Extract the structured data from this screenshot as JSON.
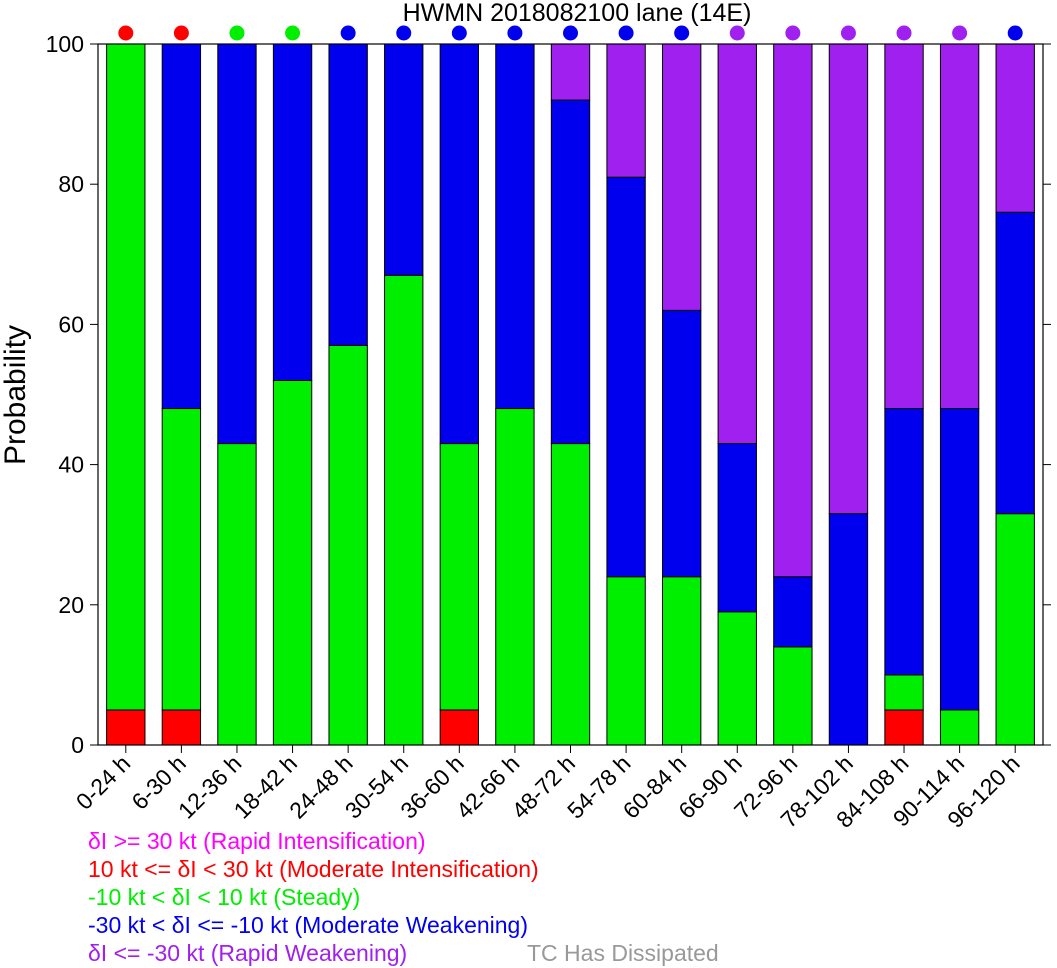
{
  "chart_data": {
    "type": "bar",
    "stacked": true,
    "title": "HWMN 2018082100 lane (14E)",
    "xlabel": "",
    "ylabel": "Probability",
    "ylim": [
      0,
      100
    ],
    "yticks": [
      0,
      20,
      40,
      60,
      80,
      100
    ],
    "categories": [
      "0-24 h",
      "6-30 h",
      "12-36 h",
      "18-42 h",
      "24-48 h",
      "30-54 h",
      "36-60 h",
      "42-66 h",
      "48-72 h",
      "54-78 h",
      "60-84 h",
      "66-90 h",
      "72-96 h",
      "78-102 h",
      "84-108 h",
      "90-114 h",
      "96-120 h"
    ],
    "series": [
      {
        "name": "Moderate Intensification",
        "color": "#ff0000",
        "values": [
          5,
          5,
          0,
          0,
          0,
          0,
          5,
          0,
          0,
          0,
          0,
          0,
          0,
          0,
          5,
          0,
          0
        ]
      },
      {
        "name": "Steady",
        "color": "#00ee00",
        "values": [
          95,
          43,
          43,
          52,
          57,
          67,
          38,
          48,
          43,
          24,
          24,
          19,
          14,
          0,
          5,
          5,
          33
        ]
      },
      {
        "name": "Moderate Weakening",
        "color": "#0000ee",
        "values": [
          0,
          52,
          57,
          48,
          43,
          33,
          57,
          52,
          49,
          57,
          38,
          24,
          10,
          33,
          38,
          43,
          43
        ]
      },
      {
        "name": "Rapid Weakening",
        "color": "#a020f0",
        "values": [
          0,
          0,
          0,
          0,
          0,
          0,
          0,
          0,
          8,
          19,
          38,
          57,
          76,
          67,
          52,
          52,
          24
        ]
      }
    ],
    "top_markers": [
      "#ff0000",
      "#ff0000",
      "#00ee00",
      "#00ee00",
      "#0000ee",
      "#0000ee",
      "#0000ee",
      "#0000ee",
      "#0000ee",
      "#0000ee",
      "#0000ee",
      "#a020f0",
      "#a020f0",
      "#a020f0",
      "#a020f0",
      "#a020f0",
      "#0000ee"
    ]
  },
  "legend": [
    {
      "text": "δI >= 30 kt (Rapid Intensification)",
      "color": "#ff00ff"
    },
    {
      "text": "10 kt <= δI < 30 kt (Moderate Intensification)",
      "color": "#ff0000"
    },
    {
      "text": "-10 kt < δI < 10 kt (Steady)",
      "color": "#00ee00"
    },
    {
      "text": "-30 kt < δI <= -10 kt (Moderate Weakening)",
      "color": "#0000ee"
    },
    {
      "text": "δI <= -30 kt (Rapid Weakening)",
      "color": "#a020f0"
    }
  ],
  "dissipated": {
    "text": "TC Has Dissipated",
    "color": "#999999"
  }
}
